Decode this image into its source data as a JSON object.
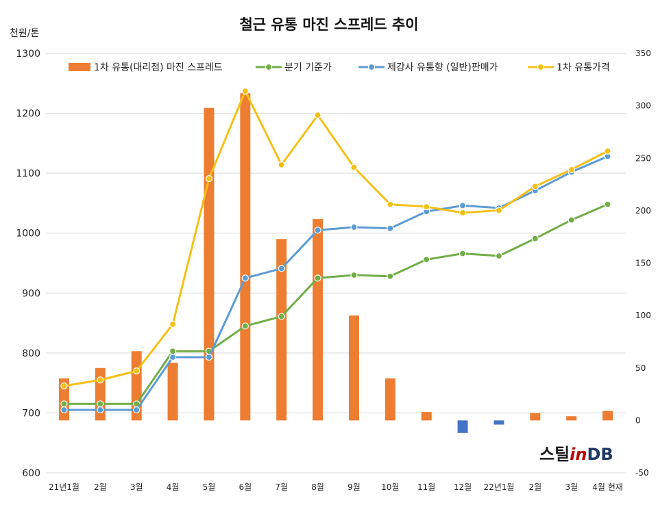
{
  "chart_data": {
    "type": "bar+line",
    "title": "철근 유통 마진 스프레드 추이",
    "y_unit": "천원/톤",
    "categories": [
      "21년1월",
      "2월",
      "3월",
      "4월",
      "5월",
      "6월",
      "7월",
      "8월",
      "9월",
      "10월",
      "11월",
      "12월",
      "22년1월",
      "2월",
      "3월",
      "4월 현재"
    ],
    "yticks": [
      "1300",
      "1200",
      "1100",
      "1000",
      "900",
      "800",
      "700",
      "600"
    ],
    "y2ticks": [
      "350",
      "300",
      "250",
      "200",
      "150",
      "100",
      "50",
      "0",
      "-50"
    ],
    "ylim": [
      600,
      1300
    ],
    "y2lim": [
      -50,
      350
    ],
    "grid": "horizontal",
    "legend": "top",
    "bar_series": {
      "name": "1차 유통(대리점) 마진 스프레드",
      "axis": "right",
      "values": [
        40,
        50,
        66,
        55,
        298,
        312,
        173,
        192,
        100,
        40,
        8,
        -12,
        -4,
        7,
        4,
        9
      ],
      "color_positive": "#ED7D31",
      "color_negative": "#4472C4"
    },
    "series": [
      {
        "name": "분기 기준가",
        "axis": "left",
        "color": "#70AD47",
        "values": [
          715,
          715,
          715,
          803,
          803,
          845,
          861,
          925,
          930,
          928,
          956,
          966,
          962,
          991,
          1022,
          1048
        ]
      },
      {
        "name": "제강사 유통향 (일반)판매가",
        "axis": "left",
        "color": "#5B9BD5",
        "values": [
          705,
          705,
          705,
          793,
          793,
          925,
          941,
          1005,
          1010,
          1008,
          1036,
          1046,
          1042,
          1071,
          1102,
          1128
        ]
      },
      {
        "name": "1차 유통가격",
        "axis": "left",
        "color": "#F5C016",
        "values": [
          745,
          755,
          770,
          848,
          1091,
          1237,
          1114,
          1197,
          1110,
          1048,
          1044,
          1034,
          1038,
          1078,
          1106,
          1137
        ]
      }
    ]
  },
  "logo": {
    "text_a": "스틸",
    "text_b": "in",
    "text_c": "DB"
  }
}
